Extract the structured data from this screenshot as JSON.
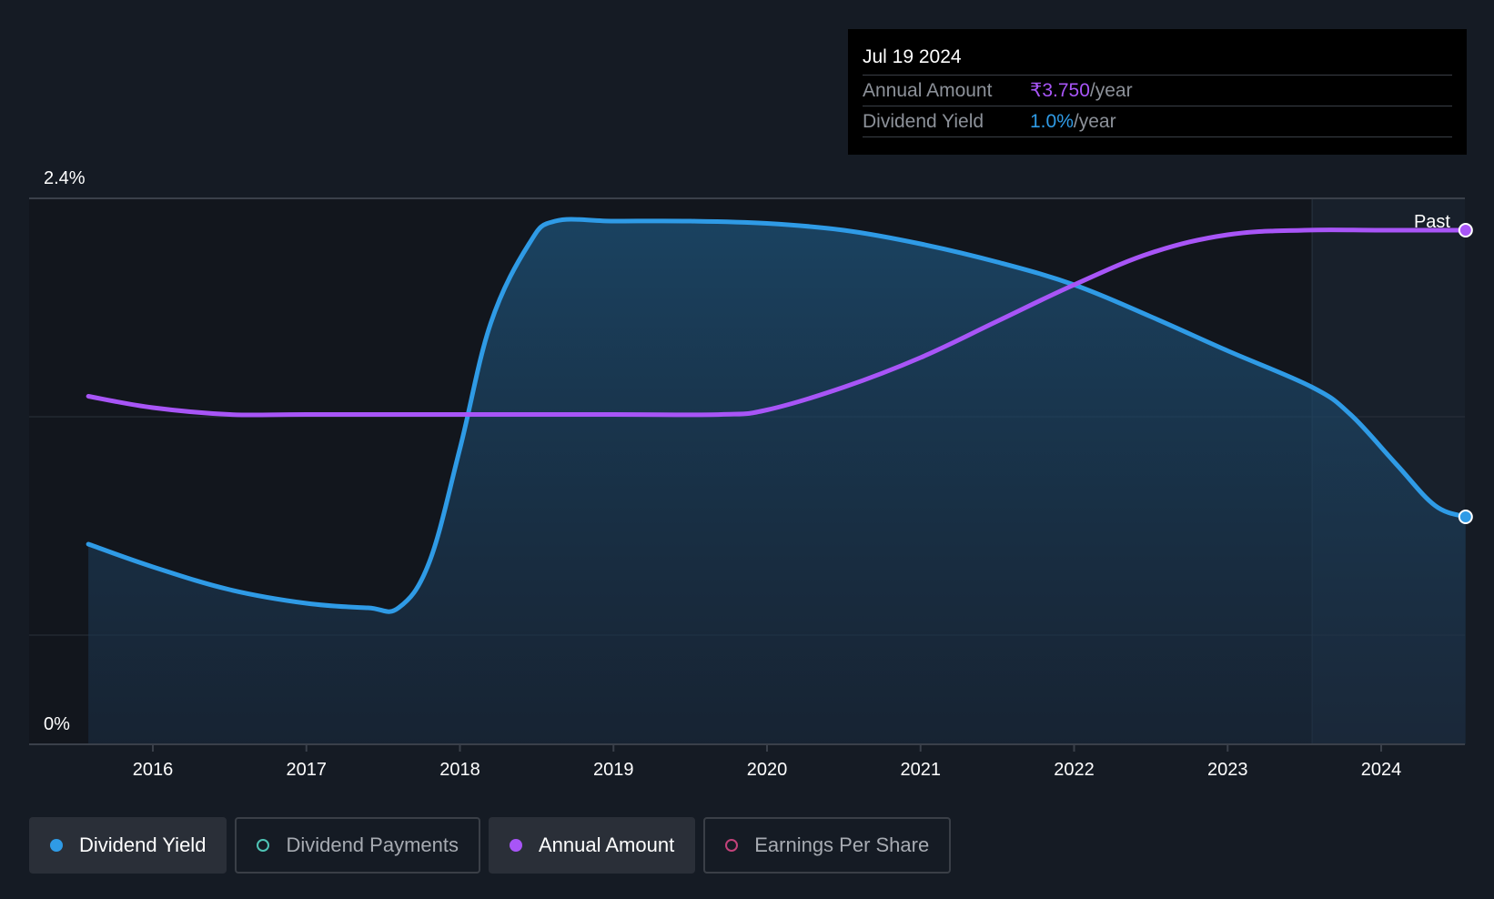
{
  "tooltip": {
    "date": "Jul 19 2024",
    "rows": [
      {
        "label": "Annual Amount",
        "value": "₹3.750",
        "unit": "/year"
      },
      {
        "label": "Dividend Yield",
        "value": "1.0%",
        "unit": "/year"
      }
    ]
  },
  "colors": {
    "background": "#151b24",
    "dividend_yield": "#2f9be6",
    "annual_amount": "#a855f7",
    "dividend_payments": "#4fc3b5",
    "earnings_per_share": "#c2427a"
  },
  "legend": [
    {
      "label": "Dividend Yield",
      "active": true,
      "marker": "filled-blue"
    },
    {
      "label": "Dividend Payments",
      "active": false,
      "marker": "ring-teal"
    },
    {
      "label": "Annual Amount",
      "active": true,
      "marker": "filled-purple"
    },
    {
      "label": "Earnings Per Share",
      "active": false,
      "marker": "ring-pink"
    }
  ],
  "chart_data": {
    "type": "line",
    "title": "",
    "xlabel": "",
    "ylabel": "",
    "past_label": "Past",
    "y_tick_labels": [
      "2.4%",
      "0%"
    ],
    "ylim": [
      0,
      2.4
    ],
    "x_ticks": [
      2016,
      2017,
      2018,
      2019,
      2020,
      2021,
      2022,
      2023,
      2024
    ],
    "xlim": [
      2015.2,
      2024.55
    ],
    "past_region_start": 2023.55,
    "grid": true,
    "series": [
      {
        "name": "Dividend Yield",
        "unit": "%",
        "color": "#2f9be6",
        "area": true,
        "points": [
          [
            2015.58,
            0.88
          ],
          [
            2016.0,
            0.78
          ],
          [
            2016.5,
            0.68
          ],
          [
            2017.0,
            0.62
          ],
          [
            2017.4,
            0.6
          ],
          [
            2017.6,
            0.6
          ],
          [
            2017.8,
            0.8
          ],
          [
            2018.0,
            1.3
          ],
          [
            2018.2,
            1.85
          ],
          [
            2018.45,
            2.2
          ],
          [
            2018.62,
            2.3
          ],
          [
            2019.0,
            2.3
          ],
          [
            2019.5,
            2.3
          ],
          [
            2020.0,
            2.29
          ],
          [
            2020.5,
            2.26
          ],
          [
            2021.0,
            2.2
          ],
          [
            2021.5,
            2.12
          ],
          [
            2022.0,
            2.02
          ],
          [
            2022.5,
            1.88
          ],
          [
            2023.0,
            1.73
          ],
          [
            2023.55,
            1.57
          ],
          [
            2023.8,
            1.45
          ],
          [
            2024.1,
            1.23
          ],
          [
            2024.35,
            1.05
          ],
          [
            2024.55,
            1.0
          ]
        ]
      },
      {
        "name": "Annual Amount",
        "unit": "₹",
        "color": "#a855f7",
        "area": false,
        "points": [
          [
            2015.58,
            1.53
          ],
          [
            2016.0,
            1.48
          ],
          [
            2016.5,
            1.45
          ],
          [
            2017.0,
            1.45
          ],
          [
            2018.0,
            1.45
          ],
          [
            2019.0,
            1.45
          ],
          [
            2019.7,
            1.45
          ],
          [
            2020.0,
            1.47
          ],
          [
            2020.5,
            1.57
          ],
          [
            2021.0,
            1.7
          ],
          [
            2021.5,
            1.86
          ],
          [
            2022.0,
            2.02
          ],
          [
            2022.5,
            2.16
          ],
          [
            2023.0,
            2.24
          ],
          [
            2023.5,
            2.26
          ],
          [
            2024.0,
            2.26
          ],
          [
            2024.55,
            2.26
          ]
        ]
      }
    ]
  }
}
